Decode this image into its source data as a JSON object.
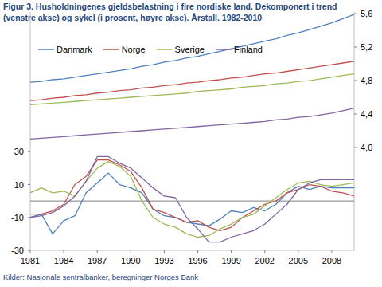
{
  "chart_data": {
    "type": "line",
    "title": "Figur 3. Husholdningenes gjeldsbelastning i fire nordiske land. Dekomponert i trend (venstre akse) og sykel (i prosent, høyre akse). Årstall. 1982-2010",
    "source": "Kilder: Nasjonale sentralbanker, beregninger Norges Bank",
    "x": [
      1981,
      1982,
      1983,
      1984,
      1985,
      1986,
      1987,
      1988,
      1989,
      1990,
      1991,
      1992,
      1993,
      1994,
      1995,
      1996,
      1997,
      1998,
      1999,
      2000,
      2001,
      2002,
      2003,
      2004,
      2005,
      2006,
      2007,
      2008,
      2009,
      2010
    ],
    "xlim": [
      1981,
      2010
    ],
    "xticks": [
      1981,
      1984,
      1987,
      1990,
      1993,
      1996,
      1999,
      2002,
      2005,
      2008
    ],
    "ylim": [
      -30,
      115
    ],
    "yticks": [
      -30,
      -10,
      10,
      30
    ],
    "y2lim": [
      2.77,
      5.62
    ],
    "y2ticks": [
      {
        "value": 4.0,
        "label": "4,0"
      },
      {
        "value": 4.4,
        "label": "4,4"
      },
      {
        "value": 4.8,
        "label": "4,8"
      },
      {
        "value": 5.2,
        "label": "5,2"
      },
      {
        "value": 5.6,
        "label": "5,6"
      }
    ],
    "grid": false,
    "legend": "top-left",
    "series": [
      {
        "name": "Danmark",
        "color": "#4f81bd",
        "axis": "y2",
        "values": [
          4.78,
          4.79,
          4.81,
          4.82,
          4.84,
          4.86,
          4.88,
          4.9,
          4.92,
          4.94,
          4.97,
          4.99,
          5.02,
          5.04,
          5.07,
          5.09,
          5.12,
          5.15,
          5.18,
          5.21,
          5.24,
          5.27,
          5.3,
          5.34,
          5.37,
          5.41,
          5.45,
          5.49,
          5.54,
          5.59
        ]
      },
      {
        "name": "Norge",
        "color": "#c0504d",
        "axis": "y2",
        "values": [
          4.56,
          4.57,
          4.59,
          4.6,
          4.62,
          4.63,
          4.65,
          4.66,
          4.68,
          4.69,
          4.71,
          4.72,
          4.74,
          4.75,
          4.77,
          4.78,
          4.8,
          4.81,
          4.83,
          4.84,
          4.86,
          4.88,
          4.89,
          4.91,
          4.93,
          4.95,
          4.97,
          4.99,
          5.01,
          5.03
        ]
      },
      {
        "name": "Sverige",
        "color": "#9bbb59",
        "axis": "y2",
        "values": [
          4.51,
          4.52,
          4.53,
          4.54,
          4.55,
          4.56,
          4.57,
          4.58,
          4.59,
          4.6,
          4.61,
          4.62,
          4.63,
          4.64,
          4.65,
          4.67,
          4.68,
          4.69,
          4.7,
          4.72,
          4.73,
          4.74,
          4.76,
          4.77,
          4.79,
          4.8,
          4.82,
          4.84,
          4.86,
          4.88
        ]
      },
      {
        "name": "Finland",
        "color": "#8064a2",
        "axis": "y2",
        "values": [
          4.1,
          4.11,
          4.12,
          4.13,
          4.14,
          4.15,
          4.16,
          4.17,
          4.18,
          4.19,
          4.2,
          4.21,
          4.22,
          4.23,
          4.24,
          4.25,
          4.26,
          4.27,
          4.28,
          4.29,
          4.3,
          4.31,
          4.33,
          4.34,
          4.36,
          4.37,
          4.39,
          4.41,
          4.44,
          4.47
        ]
      },
      {
        "name": "Danmark",
        "color": "#4f81bd",
        "values": [
          -10,
          -8,
          -20,
          -12,
          -9,
          5,
          11,
          17,
          10,
          8,
          5,
          -5,
          -9,
          -10,
          -13,
          -14,
          -15,
          -11,
          -6,
          -7,
          -4,
          -6,
          -2,
          5,
          9,
          7,
          9,
          8,
          8,
          8
        ]
      },
      {
        "name": "Norge",
        "color": "#c0504d",
        "values": [
          -8,
          -8,
          -6,
          -2,
          10,
          15,
          25,
          25,
          22,
          18,
          8,
          -5,
          -7,
          -10,
          -13,
          -12,
          -16,
          -18,
          -16,
          -10,
          -6,
          -2,
          0,
          5,
          7,
          10,
          9,
          6,
          5,
          3
        ]
      },
      {
        "name": "Sverige",
        "color": "#9bbb59",
        "values": [
          5,
          8,
          5,
          6,
          3,
          12,
          20,
          24,
          21,
          15,
          0,
          -10,
          -14,
          -16,
          -20,
          -22,
          -21,
          -17,
          -14,
          -10,
          -8,
          -3,
          2,
          7,
          11,
          12,
          10,
          9,
          10,
          11
        ]
      },
      {
        "name": "Finland",
        "color": "#8064a2",
        "values": [
          -10,
          -9,
          -7,
          -3,
          3,
          12,
          27,
          27,
          23,
          20,
          14,
          8,
          3,
          2,
          -10,
          -17,
          -25,
          -25,
          -22,
          -20,
          -18,
          -14,
          -8,
          -2,
          7,
          11,
          13,
          13,
          13,
          13
        ]
      }
    ]
  }
}
